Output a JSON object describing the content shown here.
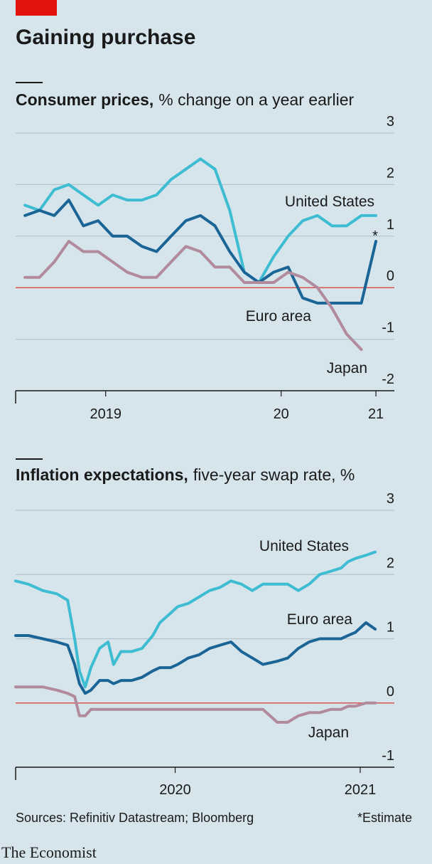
{
  "header": {
    "title": "Gaining purchase"
  },
  "chart_data": [
    {
      "type": "line",
      "title": "Consumer prices,",
      "subtitle": "% change on a year earlier",
      "x": [
        2019,
        2019.083,
        2019.167,
        2019.25,
        2019.333,
        2019.417,
        2019.5,
        2019.583,
        2019.667,
        2019.75,
        2019.833,
        2019.917,
        2020,
        2020.083,
        2020.167,
        2020.25,
        2020.333,
        2020.417,
        2020.5,
        2020.583,
        2020.667,
        2020.75,
        2020.833,
        2020.917,
        2021
      ],
      "xlim": [
        2018.947,
        2021.105
      ],
      "xticks": [
        {
          "value": 2019.46,
          "label": "2019"
        },
        {
          "value": 2020.46,
          "label": "20"
        },
        {
          "value": 2021,
          "label": "21"
        }
      ],
      "ylim": [
        -2,
        3
      ],
      "yticks": [
        3,
        2,
        1,
        0,
        -1,
        -2
      ],
      "grid": true,
      "series": [
        {
          "name": "United States",
          "color": "#3ebcd2",
          "values": [
            1.6,
            1.5,
            1.9,
            2.0,
            1.8,
            1.6,
            1.8,
            1.7,
            1.7,
            1.8,
            2.1,
            2.3,
            2.5,
            2.3,
            1.5,
            0.3,
            0.1,
            0.6,
            1.0,
            1.3,
            1.4,
            1.2,
            1.2,
            1.4,
            1.4
          ]
        },
        {
          "name": "Euro area",
          "color": "#1b6496",
          "values": [
            1.4,
            1.5,
            1.4,
            1.7,
            1.2,
            1.3,
            1.0,
            1.0,
            0.8,
            0.7,
            1.0,
            1.3,
            1.4,
            1.2,
            0.7,
            0.3,
            0.1,
            0.3,
            0.4,
            -0.2,
            -0.3,
            -0.3,
            -0.3,
            -0.3,
            0.9
          ]
        },
        {
          "name": "Japan",
          "color": "#b18b9b",
          "values": [
            0.2,
            0.2,
            0.5,
            0.9,
            0.7,
            0.7,
            0.5,
            0.3,
            0.2,
            0.2,
            0.5,
            0.8,
            0.7,
            0.4,
            0.4,
            0.1,
            0.1,
            0.1,
            0.3,
            0.2,
            0.0,
            -0.4,
            -0.9,
            -1.2,
            null
          ]
        }
      ],
      "annotation": "*"
    },
    {
      "type": "line",
      "title": "Inflation expectations,",
      "subtitle": "five-year swap rate, %",
      "x": [
        2020.0,
        2020.04,
        2020.085,
        2020.129,
        2020.163,
        2020.185,
        2020.2,
        2020.218,
        2020.236,
        2020.263,
        2020.29,
        2020.307,
        2020.33,
        2020.363,
        2020.396,
        2020.43,
        2020.452,
        2020.486,
        2020.508,
        2020.541,
        2020.575,
        2020.608,
        2020.641,
        2020.675,
        2020.708,
        2020.742,
        2020.775,
        2020.82,
        2020.853,
        2020.886,
        2020.92,
        2020.953,
        2020.987,
        2021.02,
        2021.042,
        2021.065,
        2021.098,
        2021.127
      ],
      "xlim": [
        2020.0,
        2021.187
      ],
      "xticks": [
        {
          "value": 2020.5,
          "label": "2020"
        },
        {
          "value": 2021.08,
          "label": "2021"
        }
      ],
      "ylim": [
        -1,
        3
      ],
      "yticks": [
        3,
        2,
        1,
        0,
        -1
      ],
      "grid": true,
      "series": [
        {
          "name": "United States",
          "color": "#3ebcd2",
          "values": [
            1.9,
            1.85,
            1.75,
            1.7,
            1.6,
            1.0,
            0.5,
            0.25,
            0.55,
            0.85,
            0.95,
            0.6,
            0.8,
            0.8,
            0.85,
            1.05,
            1.25,
            1.4,
            1.5,
            1.55,
            1.65,
            1.75,
            1.8,
            1.9,
            1.85,
            1.75,
            1.85,
            1.85,
            1.85,
            1.75,
            1.85,
            2.0,
            2.05,
            2.1,
            2.2,
            2.25,
            2.3,
            2.35
          ]
        },
        {
          "name": "Euro area",
          "color": "#1b6496",
          "values": [
            1.05,
            1.05,
            1.0,
            0.95,
            0.9,
            0.6,
            0.3,
            0.15,
            0.2,
            0.35,
            0.35,
            0.3,
            0.35,
            0.35,
            0.4,
            0.5,
            0.55,
            0.55,
            0.6,
            0.7,
            0.75,
            0.85,
            0.9,
            0.95,
            0.8,
            0.7,
            0.6,
            0.65,
            0.7,
            0.85,
            0.95,
            1.0,
            1.0,
            1.0,
            1.05,
            1.1,
            1.25,
            1.15
          ]
        },
        {
          "name": "Japan",
          "color": "#b18b9b",
          "values": [
            0.25,
            0.25,
            0.25,
            0.2,
            0.15,
            0.1,
            -0.2,
            -0.2,
            -0.1,
            -0.1,
            -0.1,
            -0.1,
            -0.1,
            -0.1,
            -0.1,
            -0.1,
            -0.1,
            -0.1,
            -0.1,
            -0.1,
            -0.1,
            -0.1,
            -0.1,
            -0.1,
            -0.1,
            -0.1,
            -0.1,
            -0.3,
            -0.3,
            -0.2,
            -0.15,
            -0.15,
            -0.1,
            -0.1,
            -0.05,
            -0.05,
            0.0,
            0.0
          ]
        }
      ]
    }
  ],
  "footer": {
    "source": "Sources: Refinitiv Datastream; Bloomberg",
    "note": "*Estimate",
    "brand": "The Economist"
  }
}
